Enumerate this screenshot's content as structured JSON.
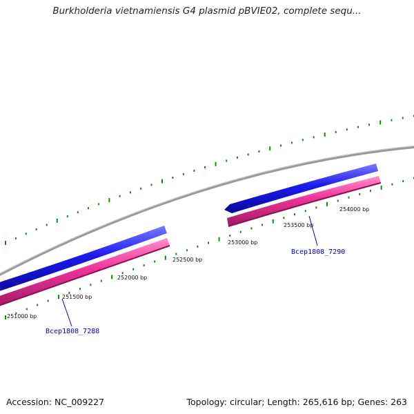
{
  "title": "Burkholderia vietnamiensis G4 plasmid pBVIE02, complete sequ...",
  "footer": {
    "accession": "Accession: NC_009227",
    "summary": "Topology: circular; Length: 265,616 bp; Genes: 263"
  },
  "position_labels": [
    "251000 bp",
    "251500 bp",
    "252000 bp",
    "252500 bp",
    "253000 bp",
    "253500 bp",
    "254000 bp"
  ],
  "genes": [
    {
      "label": "Bcep1808_7288"
    },
    {
      "label": "Bcep1808_7290"
    }
  ],
  "colors": {
    "backbone": "#8c8c8c",
    "forward_strand": "#1a1aee",
    "reverse_strand": "#ee3399",
    "ticks": "#118811",
    "gene_label": "#0000c8"
  }
}
